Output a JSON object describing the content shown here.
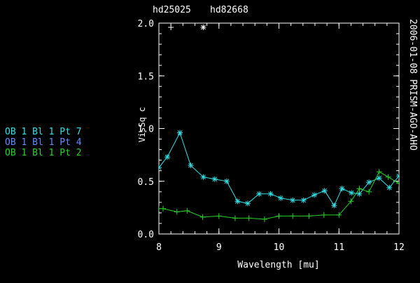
{
  "header": {
    "title_left": "hd25025",
    "title_right": "hd82668"
  },
  "side_label": "2006-01-08 PRISM-AGO-AHO",
  "legend": [
    {
      "label": "OB 1 Bl 1 Pt 7",
      "color": "#2fe0e6"
    },
    {
      "label": "OB 1 Bl 1 Pt 4",
      "color": "#5f8cff"
    },
    {
      "label": "OB 1 Bl 1 Pt 2",
      "color": "#25d425"
    }
  ],
  "chart_data": {
    "type": "line",
    "xlabel": "Wavelength [mu]",
    "ylabel": "VisSq c",
    "xlim": [
      8,
      12
    ],
    "ylim": [
      0,
      2.0
    ],
    "x_ticks": [
      "8",
      "9",
      "10",
      "11",
      "12"
    ],
    "y_ticks": [
      "0.0",
      "0.5",
      "1.0",
      "1.5",
      "2.0"
    ],
    "grid": false,
    "markers_top": [
      {
        "symbol": "+",
        "x": 8.2,
        "y": 1.96
      },
      {
        "symbol": "*",
        "x": 8.74,
        "y": 1.96
      }
    ],
    "series": [
      {
        "color": "#2fe0e6",
        "marker": "*",
        "x": [
          8.0,
          8.14,
          8.35,
          8.53,
          8.74,
          8.93,
          9.13,
          9.31,
          9.48,
          9.67,
          9.86,
          10.03,
          10.23,
          10.41,
          10.59,
          10.76,
          10.92,
          11.05,
          11.21,
          11.34,
          11.5,
          11.67,
          11.84,
          12.0
        ],
        "y": [
          0.63,
          0.73,
          0.96,
          0.65,
          0.54,
          0.52,
          0.5,
          0.31,
          0.29,
          0.38,
          0.38,
          0.34,
          0.32,
          0.32,
          0.37,
          0.41,
          0.27,
          0.43,
          0.39,
          0.38,
          0.49,
          0.53,
          0.44,
          0.55
        ]
      },
      {
        "color": "#25d425",
        "marker": "+",
        "x": [
          8.0,
          8.07,
          8.3,
          8.47,
          8.73,
          9.0,
          9.27,
          9.5,
          9.76,
          10.0,
          10.23,
          10.5,
          10.75,
          11.0,
          11.2,
          11.34,
          11.5,
          11.67,
          11.82,
          12.0
        ],
        "y": [
          0.24,
          0.24,
          0.21,
          0.22,
          0.16,
          0.17,
          0.15,
          0.15,
          0.14,
          0.17,
          0.17,
          0.17,
          0.18,
          0.18,
          0.31,
          0.43,
          0.4,
          0.59,
          0.54,
          0.48
        ]
      }
    ]
  }
}
